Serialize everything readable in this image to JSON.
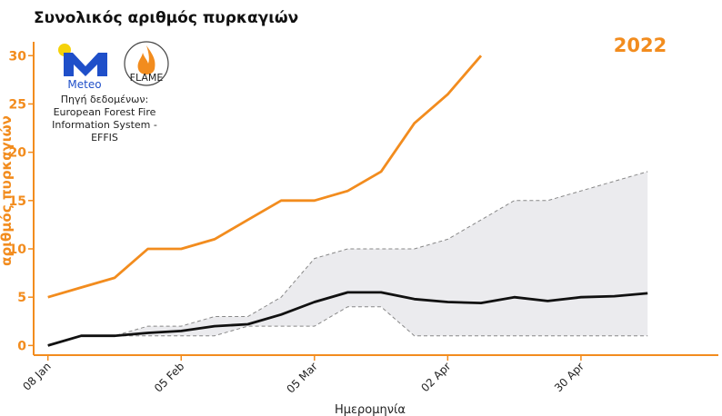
{
  "chart_data": {
    "type": "line",
    "title": "Συνολικός αριθμός πυρκαγιών",
    "xlabel": "Ημερομηνία",
    "ylabel": "αριθμός πυρκαγιών",
    "ylim": [
      -1,
      32
    ],
    "yticks": [
      0,
      5,
      10,
      15,
      20,
      25,
      30
    ],
    "xticks": [
      {
        "label": "08 Jan",
        "date": "2022-01-08"
      },
      {
        "label": "05 Feb",
        "date": "2022-02-05"
      },
      {
        "label": "05 Mar",
        "date": "2022-03-05"
      },
      {
        "label": "02 Apr",
        "date": "2022-04-02"
      },
      {
        "label": "30 Apr",
        "date": "2022-04-30"
      }
    ],
    "xlim": [
      "2022-01-05",
      "2022-05-26"
    ],
    "annotation": "2022",
    "colors": {
      "current": "#f28c1e",
      "mean": "#111111",
      "band_fill": "#ebebee",
      "band_edge": "#888888"
    },
    "series": [
      {
        "name": "2022",
        "style": "current",
        "x": [
          "2022-01-08",
          "2022-01-15",
          "2022-01-22",
          "2022-01-29",
          "2022-02-05",
          "2022-02-12",
          "2022-02-19",
          "2022-02-26",
          "2022-03-05",
          "2022-03-12",
          "2022-03-19",
          "2022-03-26",
          "2022-04-02",
          "2022-04-09"
        ],
        "y": [
          5,
          6,
          7,
          10,
          10,
          11,
          13,
          15,
          15,
          16,
          18,
          23,
          26,
          30
        ]
      },
      {
        "name": "",
        "style": "mean",
        "x": [
          "2022-01-08",
          "2022-01-15",
          "2022-01-22",
          "2022-01-29",
          "2022-02-05",
          "2022-02-12",
          "2022-02-19",
          "2022-02-26",
          "2022-03-05",
          "2022-03-12",
          "2022-03-19",
          "2022-03-26",
          "2022-04-02",
          "2022-04-09",
          "2022-04-16",
          "2022-04-23",
          "2022-04-30",
          "2022-05-07",
          "2022-05-14"
        ],
        "y": [
          0,
          1,
          1,
          1.3,
          1.5,
          2,
          2.2,
          3.2,
          4.5,
          5.5,
          5.5,
          4.8,
          4.5,
          4.4,
          5,
          4.6,
          5,
          5.1,
          5.4
        ]
      },
      {
        "name": "",
        "style": "band_upper",
        "x": [
          "2022-01-08",
          "2022-01-15",
          "2022-01-22",
          "2022-01-29",
          "2022-02-05",
          "2022-02-12",
          "2022-02-19",
          "2022-02-26",
          "2022-03-05",
          "2022-03-12",
          "2022-03-19",
          "2022-03-26",
          "2022-04-02",
          "2022-04-09",
          "2022-04-16",
          "2022-04-23",
          "2022-04-30",
          "2022-05-07",
          "2022-05-14"
        ],
        "y": [
          0,
          1,
          1,
          2,
          2,
          3,
          3,
          5,
          9,
          10,
          10,
          10,
          11,
          13,
          15,
          15,
          16,
          17,
          18
        ]
      },
      {
        "name": "",
        "style": "band_lower",
        "x": [
          "2022-01-08",
          "2022-01-15",
          "2022-01-22",
          "2022-01-29",
          "2022-02-05",
          "2022-02-12",
          "2022-02-19",
          "2022-02-26",
          "2022-03-05",
          "2022-03-12",
          "2022-03-19",
          "2022-03-26",
          "2022-04-02",
          "2022-04-09",
          "2022-04-16",
          "2022-04-23",
          "2022-04-30",
          "2022-05-07",
          "2022-05-14"
        ],
        "y": [
          0,
          1,
          1,
          1,
          1,
          1,
          2,
          2,
          2,
          4,
          4,
          1,
          1,
          1,
          1,
          1,
          1,
          1,
          1
        ]
      }
    ]
  },
  "logos": {
    "meteo": {
      "letter": "M",
      "name": "Meteo",
      "sun_color": "#f5d20a",
      "blue": "#1f4fc9"
    },
    "flame": {
      "name": "FLAME"
    }
  },
  "source": {
    "lines": [
      "Πηγή δεδομένων:",
      "European Forest Fire",
      "Information System -",
      "EFFIS"
    ]
  }
}
